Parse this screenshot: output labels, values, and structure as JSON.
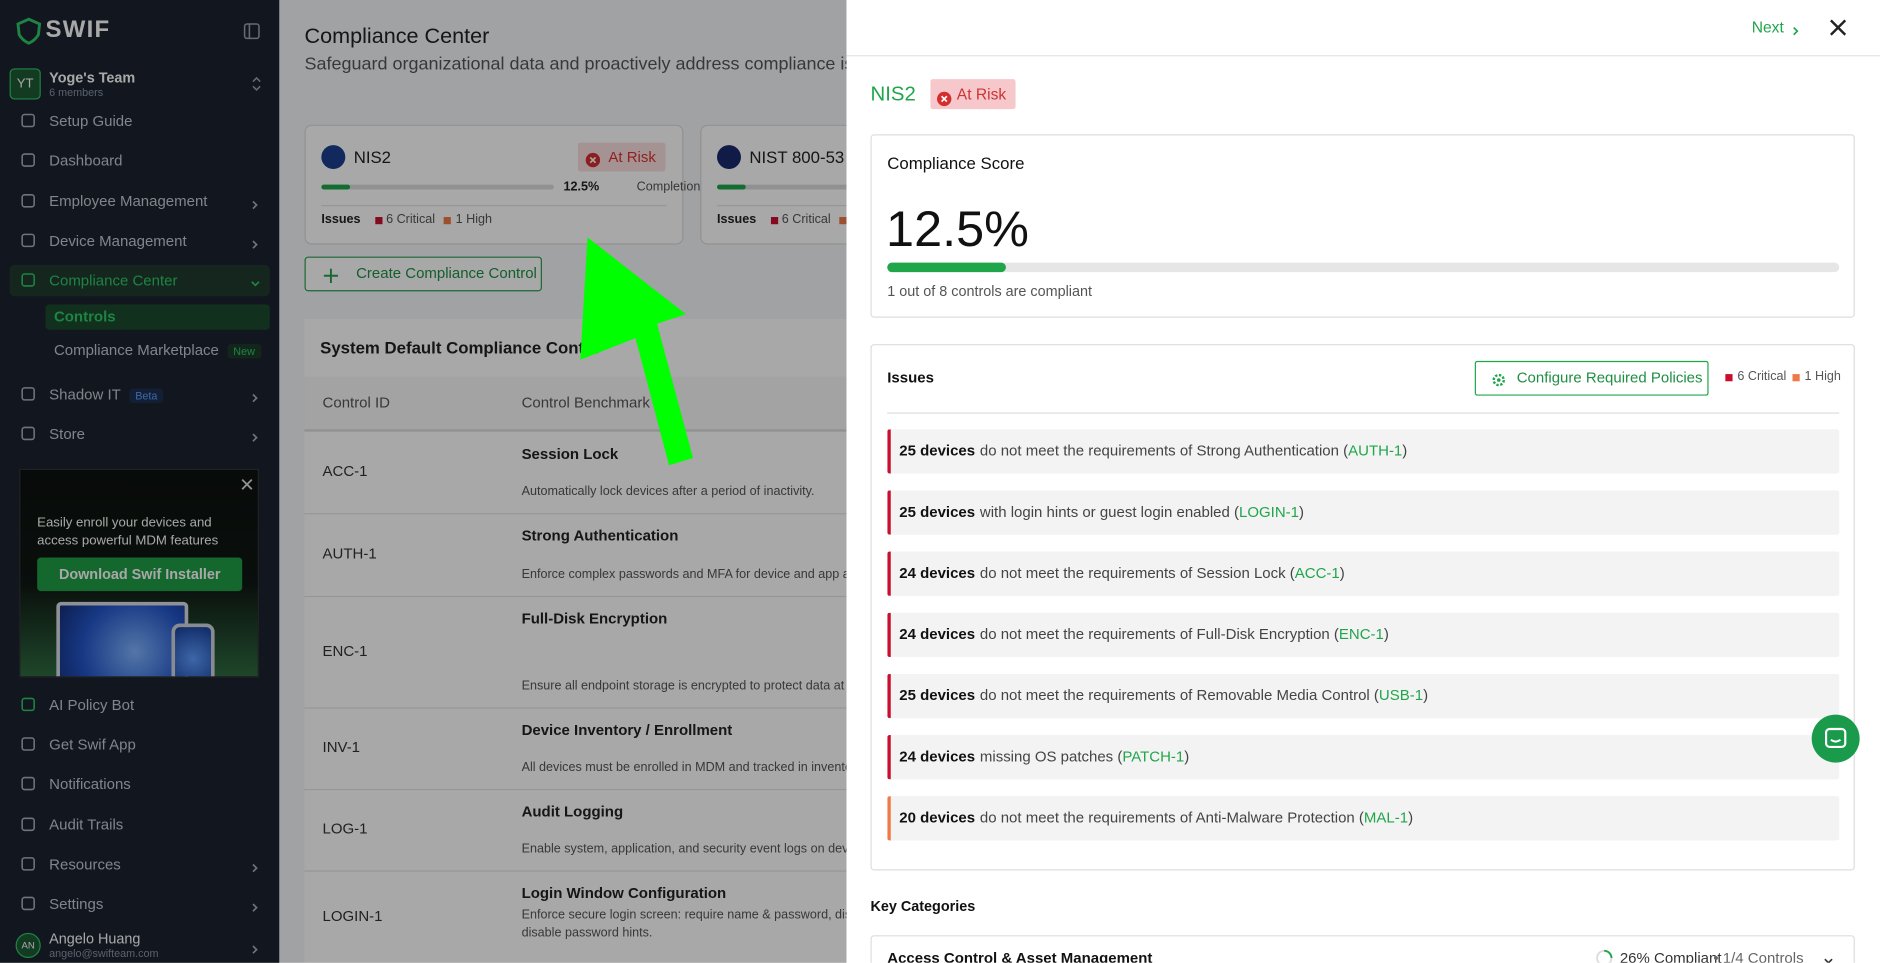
{
  "sidebar": {
    "brand": "SWIF",
    "team": {
      "avatar": "YT",
      "name": "Yoge's Team",
      "members": "6 members"
    },
    "nav": [
      {
        "label": "Setup Guide"
      },
      {
        "label": "Dashboard"
      },
      {
        "label": "Employee Management"
      },
      {
        "label": "Device Management"
      },
      {
        "label": "Compliance Center"
      }
    ],
    "subnav": [
      {
        "label": "Controls"
      },
      {
        "label": "Compliance Marketplace",
        "badge": "New"
      }
    ],
    "nav2": [
      {
        "label": "Shadow IT",
        "badge": "Beta"
      },
      {
        "label": "Store"
      }
    ],
    "promo": {
      "text": "Easily enroll your devices and access powerful MDM features",
      "button": "Download Swif Installer"
    },
    "bottom_nav": [
      "AI Policy Bot",
      "Get Swif App",
      "Notifications",
      "Audit Trails",
      "Resources",
      "Settings"
    ],
    "user": {
      "avatar": "AN",
      "name": "Angelo Huang",
      "email": "angelo@swifteam.com"
    }
  },
  "main": {
    "title": "Compliance Center",
    "subtitle": "Safeguard organizational data and proactively address compliance issues",
    "cards": [
      {
        "name": "NIS2",
        "status": "At Risk",
        "percent": "12.5%",
        "percent_label": "Completion",
        "issues_label": "Issues",
        "critical": "6 Critical",
        "high": "1 High"
      },
      {
        "name": "NIST 800-53",
        "issues_label": "Issues",
        "critical": "6 Critical"
      }
    ],
    "create_button": "Create Compliance Control",
    "table": {
      "title": "System Default Compliance Contro",
      "headers": [
        "Control ID",
        "Control Benchmark"
      ],
      "rows": [
        {
          "id": "ACC-1",
          "name": "Session Lock",
          "desc": [
            "Automatically lock devices after a period of inactivity."
          ]
        },
        {
          "id": "AUTH-1",
          "name": "Strong Authentication",
          "desc": [
            "Enforce complex passwords and MFA for device and app a"
          ]
        },
        {
          "id": "ENC-1",
          "name": "Full-Disk Encryption",
          "desc": [
            "Ensure all endpoint storage is encrypted to protect data at"
          ]
        },
        {
          "id": "INV-1",
          "name": "Device Inventory / Enrollment",
          "desc": [
            "All devices must be enrolled in MDM and tracked in invento"
          ]
        },
        {
          "id": "LOG-1",
          "name": "Audit Logging",
          "desc": [
            "Enable system, application, and security event logs on dev"
          ]
        },
        {
          "id": "LOGIN-1",
          "name": "Login Window Configuration",
          "desc": [
            "Enforce secure login screen: require name & password, dis",
            "disable password hints."
          ]
        }
      ]
    }
  },
  "panel": {
    "next": "Next",
    "framework": "NIS2",
    "status": "At Risk",
    "score": {
      "title": "Compliance Score",
      "value": "12.5%",
      "note": "1 out of 8 controls are compliant"
    },
    "issues": {
      "title": "Issues",
      "button": "Configure Required Policies",
      "critical": "6 Critical",
      "high": "1 High",
      "items": [
        {
          "count": "25 devices",
          "text": "do not meet the requirements of Strong Authentication (",
          "code": "AUTH-1",
          "close": ")",
          "color": "#c8102e"
        },
        {
          "count": "25 devices",
          "text": "with login hints or guest login enabled (",
          "code": "LOGIN-1",
          "close": ")",
          "color": "#c8102e"
        },
        {
          "count": "24 devices",
          "text": "do not meet the requirements of Session Lock (",
          "code": "ACC-1",
          "close": ")",
          "color": "#c8102e"
        },
        {
          "count": "24 devices",
          "text": "do not meet the requirements of Full-Disk Encryption (",
          "code": "ENC-1",
          "close": ")",
          "color": "#c8102e"
        },
        {
          "count": "25 devices",
          "text": "do not meet the requirements of Removable Media Control (",
          "code": "USB-1",
          "close": ")",
          "color": "#c8102e"
        },
        {
          "count": "24 devices",
          "text": "missing OS patches (",
          "code": "PATCH-1",
          "close": ")",
          "color": "#c8102e"
        },
        {
          "count": "20 devices",
          "text": "do not meet the requirements of Anti-Malware Protection (",
          "code": "MAL-1",
          "close": ")",
          "color": "#ef7a45"
        }
      ]
    },
    "categories_title": "Key Categories",
    "categories": [
      {
        "name": "Access Control & Asset Management",
        "compliance": "26% Compliant",
        "controls": "• 1/4 Controls"
      }
    ]
  }
}
